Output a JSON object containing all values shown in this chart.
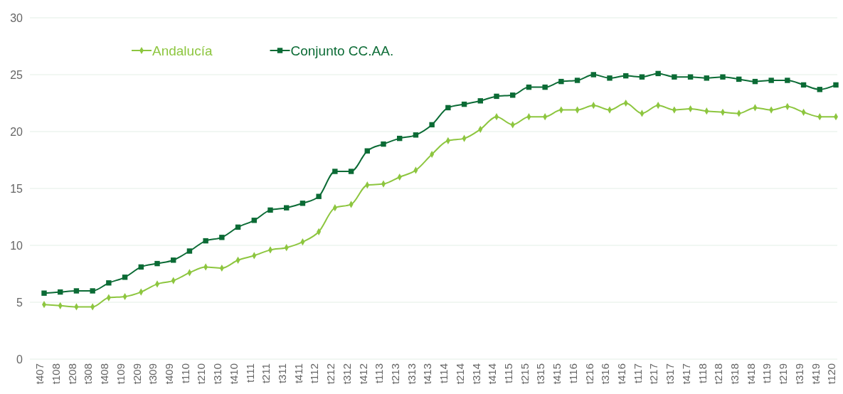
{
  "chart_data": {
    "type": "line",
    "categories": [
      "t407",
      "t108",
      "t208",
      "t308",
      "t408",
      "t109",
      "t209",
      "t309",
      "t409",
      "t110",
      "t210",
      "t310",
      "t410",
      "t111",
      "t211",
      "t311",
      "t411",
      "t112",
      "t212",
      "t312",
      "t412",
      "t113",
      "t213",
      "t313",
      "t413",
      "t114",
      "t214",
      "t314",
      "t414",
      "t115",
      "t215",
      "t315",
      "t415",
      "t116",
      "t216",
      "t316",
      "t416",
      "t117",
      "t217",
      "t317",
      "t417",
      "t118",
      "t218",
      "t318",
      "t418",
      "t119",
      "t219",
      "t319",
      "t419",
      "t120"
    ],
    "series": [
      {
        "name": "Andalucía",
        "color": "#8dc63f",
        "marker": "diamond",
        "values": [
          4.8,
          4.7,
          4.6,
          4.6,
          5.4,
          5.5,
          5.9,
          6.6,
          6.9,
          7.6,
          8.1,
          8.0,
          8.7,
          9.1,
          9.6,
          9.8,
          10.3,
          11.2,
          13.3,
          13.6,
          15.3,
          15.4,
          16.0,
          16.6,
          18.0,
          19.2,
          19.4,
          20.2,
          21.3,
          20.6,
          21.3,
          21.3,
          21.9,
          21.9,
          22.3,
          21.9,
          22.5,
          21.6,
          22.3,
          21.9,
          22.0,
          21.8,
          21.7,
          21.6,
          22.1,
          21.9,
          22.2,
          21.7,
          21.3,
          21.3
        ]
      },
      {
        "name": "Conjunto CC.AA.",
        "color": "#0b6b35",
        "marker": "square",
        "values": [
          5.8,
          5.9,
          6.0,
          6.0,
          6.7,
          7.2,
          8.1,
          8.4,
          8.7,
          9.5,
          10.4,
          10.7,
          11.6,
          12.2,
          13.1,
          13.3,
          13.7,
          14.3,
          16.5,
          16.5,
          18.3,
          18.9,
          19.4,
          19.7,
          20.6,
          22.1,
          22.4,
          22.7,
          23.1,
          23.2,
          23.9,
          23.9,
          24.4,
          24.5,
          25.0,
          24.7,
          24.9,
          24.8,
          25.1,
          24.8,
          24.8,
          24.7,
          24.8,
          24.6,
          24.4,
          24.5,
          24.5,
          24.1,
          23.7,
          24.1
        ]
      }
    ],
    "ylim": [
      0,
      30
    ],
    "yticks": [
      0,
      5,
      10,
      15,
      20,
      25,
      30
    ],
    "grid": "y",
    "legend": "top left",
    "line_style": "solid"
  }
}
